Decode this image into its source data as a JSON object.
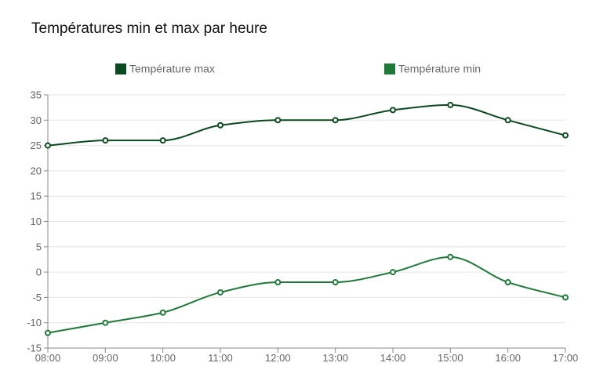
{
  "chart_data": {
    "type": "line",
    "title": "Températures min et max par heure",
    "xlabel": "",
    "ylabel": "",
    "categories": [
      "08:00",
      "09:00",
      "10:00",
      "11:00",
      "12:00",
      "13:00",
      "14:00",
      "15:00",
      "16:00",
      "17:00"
    ],
    "ylim": [
      -15,
      35
    ],
    "yticks": [
      35,
      30,
      25,
      20,
      15,
      10,
      5,
      0,
      -5,
      -10,
      -15
    ],
    "grid": true,
    "legend_position": "top",
    "series": [
      {
        "name": "Température max",
        "color": "#0b4a1f",
        "values": [
          25,
          26,
          26,
          29,
          30,
          30,
          32,
          33,
          30,
          27
        ]
      },
      {
        "name": "Température min",
        "color": "#1f7a3a",
        "values": [
          -12,
          -10,
          -8,
          -4,
          -2,
          -2,
          0,
          3,
          -2,
          -5
        ]
      }
    ]
  }
}
